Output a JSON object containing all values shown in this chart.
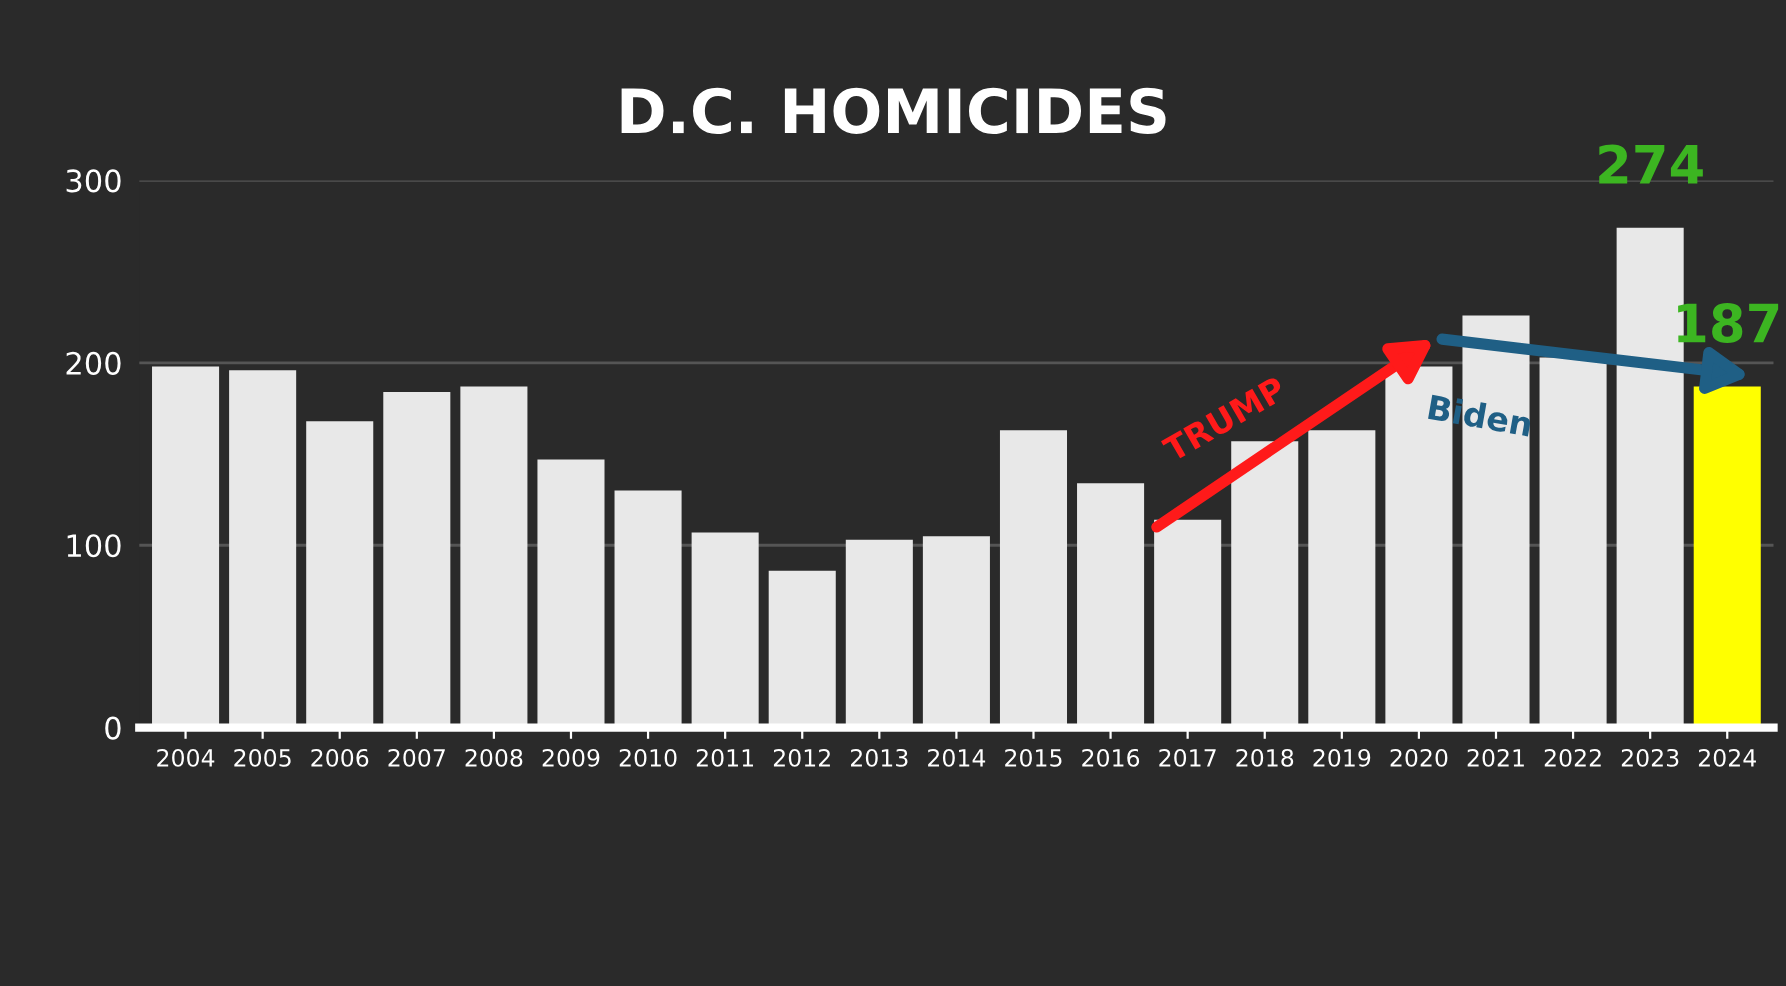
{
  "chart_data": {
    "type": "bar",
    "title": "D.C. HOMICIDES",
    "categories": [
      "2004",
      "2005",
      "2006",
      "2007",
      "2008",
      "2009",
      "2010",
      "2011",
      "2012",
      "2013",
      "2014",
      "2015",
      "2016",
      "2017",
      "2018",
      "2019",
      "2020",
      "2021",
      "2022",
      "2023",
      "2024"
    ],
    "values": [
      198,
      196,
      168,
      184,
      187,
      147,
      130,
      107,
      86,
      103,
      105,
      163,
      134,
      114,
      157,
      163,
      198,
      226,
      203,
      274,
      187
    ],
    "colors": [
      "#e8e8e8",
      "#e8e8e8",
      "#e8e8e8",
      "#e8e8e8",
      "#e8e8e8",
      "#e8e8e8",
      "#e8e8e8",
      "#e8e8e8",
      "#e8e8e8",
      "#e8e8e8",
      "#e8e8e8",
      "#e8e8e8",
      "#e8e8e8",
      "#e8e8e8",
      "#e8e8e8",
      "#e8e8e8",
      "#e8e8e8",
      "#e8e8e8",
      "#e8e8e8",
      "#e8e8e8",
      "#ffff00"
    ],
    "value_labels": [
      null,
      null,
      null,
      null,
      null,
      null,
      null,
      null,
      null,
      null,
      null,
      null,
      null,
      null,
      null,
      null,
      null,
      null,
      null,
      "274",
      "187"
    ],
    "annotations": [
      "TRUMP",
      "Biden"
    ],
    "ylim": [
      0,
      300
    ],
    "yticks": [
      0,
      100,
      200,
      300
    ],
    "grid": "y",
    "legend": false
  }
}
